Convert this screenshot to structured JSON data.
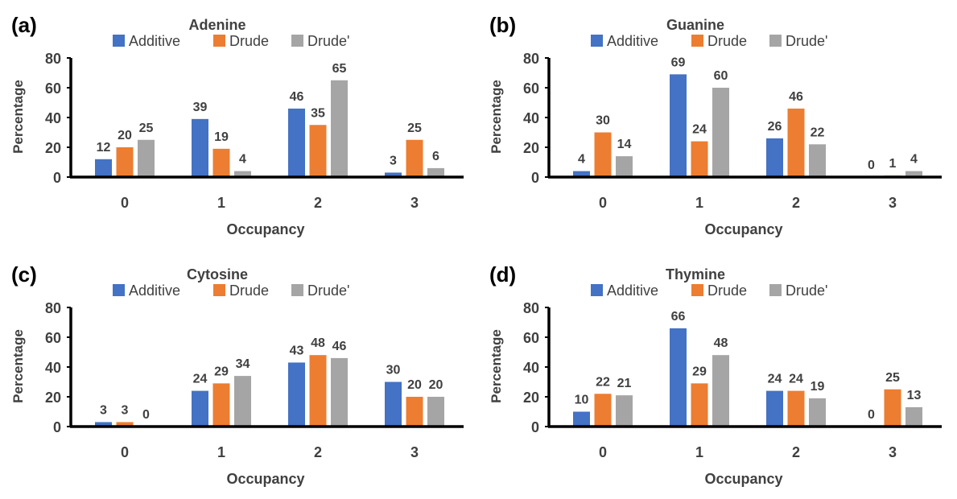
{
  "colors": {
    "series": [
      "#4472C4",
      "#ED7D31",
      "#A5A5A5"
    ],
    "axis": "#000000",
    "text": "#404040"
  },
  "chart_data": [
    {
      "type": "bar",
      "panel_label": "(a)",
      "title": "Adenine",
      "xlabel": "Occupancy",
      "ylabel": "Percentage",
      "ylim": [
        0,
        80
      ],
      "yticks": [
        0,
        20,
        40,
        60,
        80
      ],
      "grid": false,
      "legend": "top",
      "categories": [
        "0",
        "1",
        "2",
        "3"
      ],
      "series": [
        {
          "name": "Additive",
          "values": [
            12,
            39,
            46,
            3
          ],
          "labels": [
            "12",
            "39",
            "46",
            "3"
          ]
        },
        {
          "name": "Drude",
          "values": [
            20,
            19,
            35,
            25
          ],
          "labels": [
            "20",
            "19",
            "35",
            "25"
          ]
        },
        {
          "name": "Drude'",
          "values": [
            25,
            4,
            65,
            6
          ],
          "labels": [
            "25",
            "4",
            "65",
            "6"
          ]
        }
      ]
    },
    {
      "type": "bar",
      "panel_label": "(b)",
      "title": "Guanine",
      "xlabel": "Occupancy",
      "ylabel": "Percentage",
      "ylim": [
        0,
        80
      ],
      "yticks": [
        0,
        20,
        40,
        60,
        80
      ],
      "grid": false,
      "legend": "top",
      "categories": [
        "0",
        "1",
        "2",
        "3"
      ],
      "series": [
        {
          "name": "Additive",
          "values": [
            4,
            69,
            26,
            0
          ],
          "labels": [
            "4",
            "69",
            "26",
            "0"
          ]
        },
        {
          "name": "Drude",
          "values": [
            30,
            24,
            46,
            1
          ],
          "labels": [
            "30",
            "24",
            "46",
            "1"
          ]
        },
        {
          "name": "Drude'",
          "values": [
            14,
            60,
            22,
            4
          ],
          "labels": [
            "14",
            "60",
            "22",
            "4"
          ]
        }
      ]
    },
    {
      "type": "bar",
      "panel_label": "(c)",
      "title": "Cytosine",
      "xlabel": "Occupancy",
      "ylabel": "Percentage",
      "ylim": [
        0,
        80
      ],
      "yticks": [
        0,
        20,
        40,
        60,
        80
      ],
      "grid": false,
      "legend": "top",
      "categories": [
        "0",
        "1",
        "2",
        "3"
      ],
      "series": [
        {
          "name": "Additive",
          "values": [
            3,
            24,
            43,
            30
          ],
          "labels": [
            "3",
            "24",
            "43",
            "30"
          ]
        },
        {
          "name": "Drude",
          "values": [
            3,
            29,
            48,
            20
          ],
          "labels": [
            "3",
            "29",
            "48",
            "20"
          ]
        },
        {
          "name": "Drude'",
          "values": [
            0,
            34,
            46,
            20
          ],
          "labels": [
            "0",
            "34",
            "46",
            "20"
          ]
        }
      ]
    },
    {
      "type": "bar",
      "panel_label": "(d)",
      "title": "Thymine",
      "xlabel": "Occupancy",
      "ylabel": "Percentage",
      "ylim": [
        0,
        80
      ],
      "yticks": [
        0,
        20,
        40,
        60,
        80
      ],
      "grid": false,
      "legend": "top",
      "categories": [
        "0",
        "1",
        "2",
        "3"
      ],
      "series": [
        {
          "name": "Additive",
          "values": [
            10,
            66,
            24,
            0
          ],
          "labels": [
            "10",
            "66",
            "24",
            "0"
          ]
        },
        {
          "name": "Drude",
          "values": [
            22,
            29,
            24,
            25
          ],
          "labels": [
            "22",
            "29",
            "24",
            "25"
          ]
        },
        {
          "name": "Drude'",
          "values": [
            21,
            48,
            19,
            13
          ],
          "labels": [
            "21",
            "48",
            "19",
            "13"
          ]
        }
      ]
    }
  ]
}
